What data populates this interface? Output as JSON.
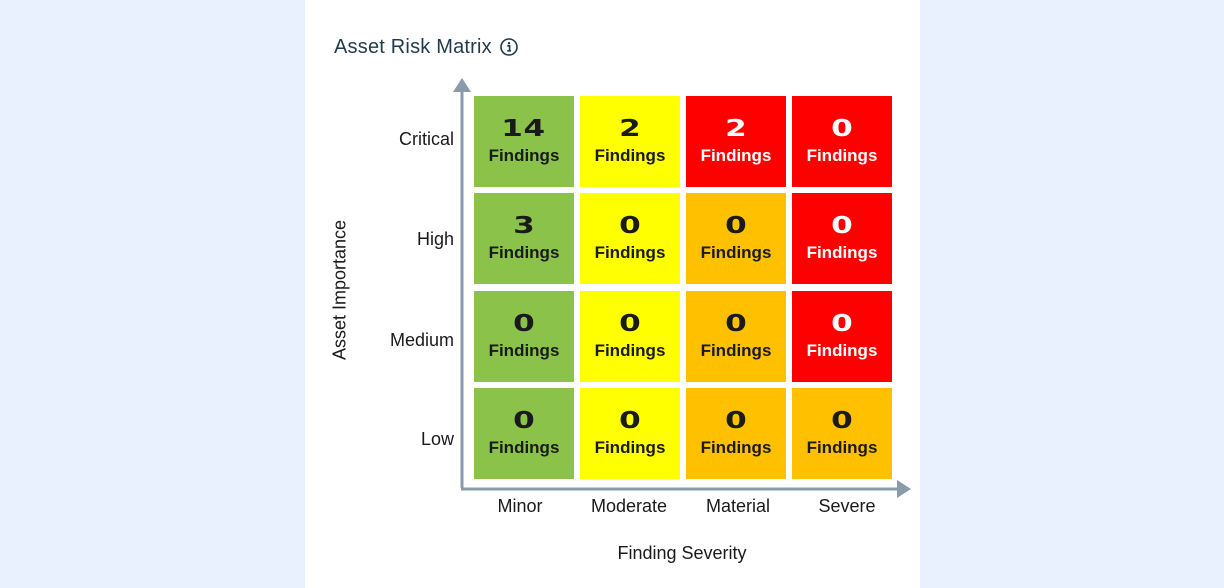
{
  "widget": {
    "title": "Asset Risk Matrix",
    "info_icon": "info-circle-icon"
  },
  "axes": {
    "y_title": "Asset Importance",
    "x_title": "Finding Severity",
    "rows": [
      "Critical",
      "High",
      "Medium",
      "Low"
    ],
    "cols": [
      "Minor",
      "Moderate",
      "Material",
      "Severe"
    ]
  },
  "colors": {
    "green": "#8bc34a",
    "yellow": "#ffff00",
    "orange": "#ffc000",
    "red": "#ff0000",
    "axis": "#8a9bab"
  },
  "matrix": [
    [
      {
        "count": "14",
        "label": "Findings",
        "level": "green"
      },
      {
        "count": "2",
        "label": "Findings",
        "level": "yellow"
      },
      {
        "count": "2",
        "label": "Findings",
        "level": "red"
      },
      {
        "count": "0",
        "label": "Findings",
        "level": "red"
      }
    ],
    [
      {
        "count": "3",
        "label": "Findings",
        "level": "green"
      },
      {
        "count": "0",
        "label": "Findings",
        "level": "yellow"
      },
      {
        "count": "0",
        "label": "Findings",
        "level": "orange"
      },
      {
        "count": "0",
        "label": "Findings",
        "level": "red"
      }
    ],
    [
      {
        "count": "0",
        "label": "Findings",
        "level": "green"
      },
      {
        "count": "0",
        "label": "Findings",
        "level": "yellow"
      },
      {
        "count": "0",
        "label": "Findings",
        "level": "orange"
      },
      {
        "count": "0",
        "label": "Findings",
        "level": "red"
      }
    ],
    [
      {
        "count": "0",
        "label": "Findings",
        "level": "green"
      },
      {
        "count": "0",
        "label": "Findings",
        "level": "yellow"
      },
      {
        "count": "0",
        "label": "Findings",
        "level": "orange"
      },
      {
        "count": "0",
        "label": "Findings",
        "level": "orange"
      }
    ]
  ]
}
